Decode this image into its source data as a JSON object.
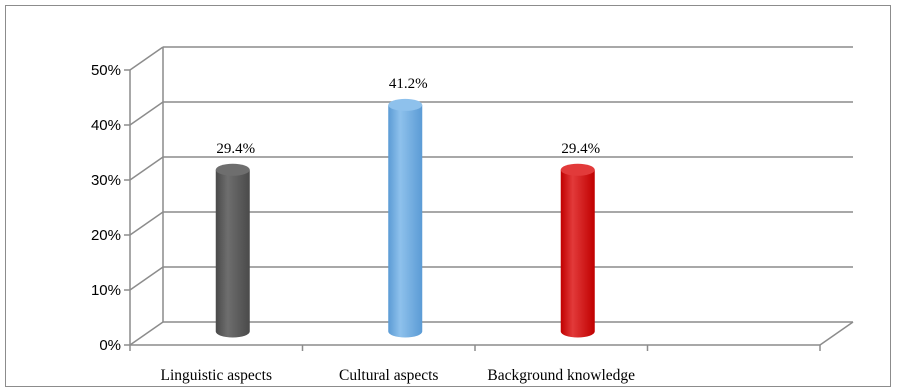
{
  "chart_data": {
    "type": "bar",
    "categories": [
      "Linguistic aspects",
      "Cultural aspects",
      "Background knowledge"
    ],
    "values": [
      29.4,
      41.2,
      29.4
    ],
    "data_labels": [
      "29.4%",
      "41.2%",
      "29.4%"
    ],
    "title": "",
    "xlabel": "",
    "ylabel": "",
    "ylim": [
      0,
      50
    ],
    "yticks": [
      "0%",
      "10%",
      "20%",
      "30%",
      "40%",
      "50%"
    ],
    "grid": true,
    "legend": "none",
    "bar_colors": [
      "#4a4a4a",
      "#5b9bd5",
      "#c00000"
    ],
    "bar_highlight_colors": [
      "#6e6e6e",
      "#8ec1ec",
      "#e23a3a"
    ]
  }
}
